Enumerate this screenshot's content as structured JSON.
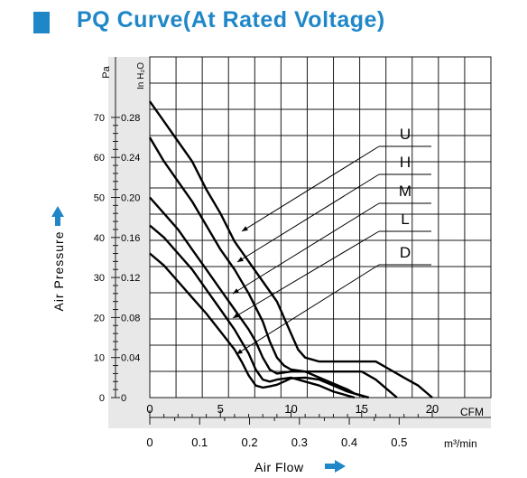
{
  "header": {
    "title": "PQ Curve(At Rated Voltage)"
  },
  "colors": {
    "accent": "#1f87c8",
    "plot_bg": "#e8e8e8",
    "grid": "#1a1a1a",
    "curve": "#000000"
  },
  "chart_data": {
    "type": "line",
    "title": "PQ Curve(At Rated Voltage)",
    "xlabel": "Air Flow",
    "ylabel": "Air Pressure",
    "x_unit_primary": "CFM",
    "x_unit_secondary": "m³/min",
    "y_unit_primary": "Pa",
    "y_unit_secondary": "In H₂O",
    "xlim": [
      0,
      20
    ],
    "ylim": [
      0,
      70
    ],
    "x_ticks_cfm": [
      "0",
      "5",
      "10",
      "15",
      "20"
    ],
    "x_ticks_m3min": [
      "0",
      "0.1",
      "0.2",
      "0.3",
      "0.4",
      "0.5"
    ],
    "y_ticks_pa": [
      "70",
      "60",
      "50",
      "40",
      "30",
      "20",
      "10",
      "0"
    ],
    "y_ticks_inh2o": [
      "0.28",
      "0.24",
      "0.20",
      "0.16",
      "0.12",
      "0.08",
      "0.04",
      "0"
    ],
    "grid": true,
    "series": [
      {
        "name": "U",
        "x": [
          0,
          1,
          2,
          3,
          4,
          5,
          6,
          7,
          8,
          9,
          10,
          10.5,
          11,
          12,
          14,
          16,
          17,
          18,
          19,
          19.5,
          20
        ],
        "y": [
          74,
          69,
          64,
          59,
          52,
          46,
          39,
          34,
          29,
          24,
          16,
          12,
          10,
          9,
          9,
          9,
          7,
          5,
          3,
          1.5,
          0
        ]
      },
      {
        "name": "H",
        "x": [
          0,
          1,
          2,
          3,
          4,
          5,
          6,
          7,
          8,
          8.5,
          9,
          9.5,
          10,
          11,
          13,
          15,
          16,
          16.5,
          17,
          17.5
        ],
        "y": [
          65,
          59,
          54,
          49,
          43,
          37,
          32,
          26,
          19,
          14,
          10,
          8,
          7,
          6.5,
          6.5,
          6.5,
          4.5,
          3,
          1.5,
          0
        ]
      },
      {
        "name": "M",
        "x": [
          0,
          1,
          2,
          3,
          4,
          5,
          6,
          7,
          7.5,
          8,
          8.5,
          9,
          10,
          11,
          12,
          13,
          14,
          14.5,
          15,
          15.5
        ],
        "y": [
          50,
          46,
          42,
          37,
          32,
          27,
          22,
          17,
          14,
          10,
          7,
          6,
          6.5,
          6.5,
          5,
          3.5,
          2,
          1,
          0.5,
          0
        ]
      },
      {
        "name": "L",
        "x": [
          0,
          1,
          2,
          3,
          4,
          5,
          6,
          6.5,
          7,
          7.5,
          8,
          8.5,
          9,
          10,
          11,
          12,
          13,
          14,
          14.5
        ],
        "y": [
          43,
          40,
          36,
          32,
          27,
          22,
          17,
          14,
          11,
          7,
          4.5,
          4,
          4.5,
          5,
          4,
          3,
          1.5,
          0.5,
          0
        ]
      },
      {
        "name": "D",
        "x": [
          0,
          1,
          2,
          3,
          4,
          5,
          6,
          6.5,
          7,
          7.5,
          8,
          8.5,
          9,
          9.5,
          10,
          11,
          12,
          13,
          14,
          15,
          15.5
        ],
        "y": [
          36,
          33,
          29,
          25,
          21,
          16.5,
          12,
          9,
          5.5,
          3,
          2.5,
          2.8,
          3.2,
          4,
          4.8,
          5,
          4.5,
          3,
          1.5,
          0.5,
          0
        ]
      }
    ],
    "legend": [
      "U",
      "H",
      "M",
      "L",
      "D"
    ],
    "legend_placement": "right, with leader lines to each curve"
  }
}
